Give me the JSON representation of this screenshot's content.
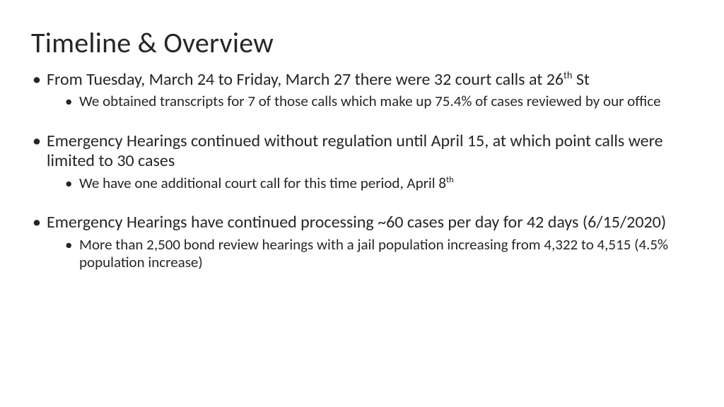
{
  "title": "Timeline & Overview",
  "bullets": [
    {
      "prefix": "From Tuesday, March 24 to Friday, March 27 there were 32 court calls at 26",
      "sup": "th",
      "suffix": " St",
      "sub": [
        {
          "prefix": "We obtained transcripts for 7 of those calls which make up 75.4% of cases reviewed by our office",
          "sup": "",
          "suffix": ""
        }
      ]
    },
    {
      "prefix": "Emergency Hearings continued without regulation until April 15, at which point calls were limited to 30 cases",
      "sup": "",
      "suffix": "",
      "sub": [
        {
          "prefix": "We have one additional court call for this time period, April 8",
          "sup": "th",
          "suffix": ""
        }
      ]
    },
    {
      "prefix": "Emergency Hearings have continued processing ~60 cases per day for 42 days (6/15/2020)",
      "sup": "",
      "suffix": "",
      "sub": [
        {
          "prefix": "More than 2,500 bond review hearings with a jail population increasing from 4,322 to 4,515 (4.5% population increase)",
          "sup": "",
          "suffix": ""
        }
      ]
    }
  ],
  "colors": {
    "background": "#ffffff",
    "text": "#262626"
  },
  "typography": {
    "title_fontsize": 40,
    "bullet_fontsize": 24,
    "sub_bullet_fontsize": 21,
    "font_family": "Calibri"
  }
}
